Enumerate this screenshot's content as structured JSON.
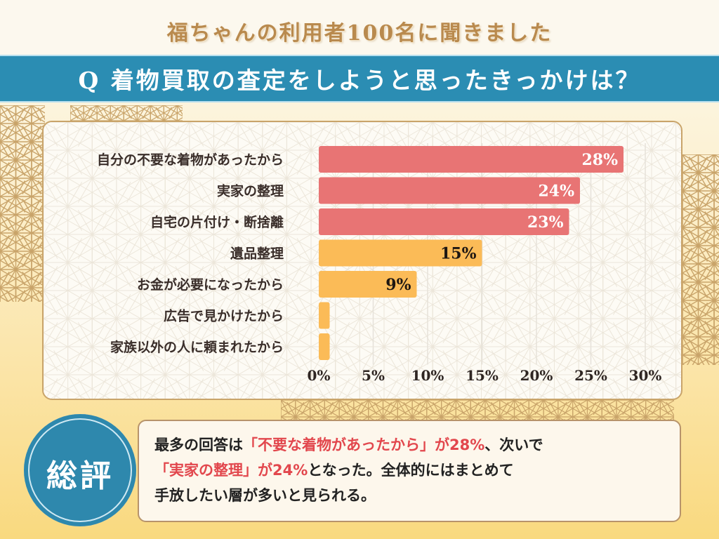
{
  "header": {
    "headline": "福ちゃんの利用者100名に聞きました",
    "question": "Q 着物買取の査定をしようと思ったきっかけは？"
  },
  "colors": {
    "primary_bar": "#e87474",
    "secondary_bar": "#fbbb57",
    "accent_blue": "#2b8db3",
    "highlight_text": "#e2474d",
    "gold": "#c9a46a"
  },
  "chart_data": {
    "type": "bar",
    "orientation": "horizontal",
    "title": "Q 着物買取の査定をしようと思ったきっかけは？",
    "categories": [
      "自分の不要な着物があったから",
      "実家の整理",
      "自宅の片付け・断捨離",
      "遺品整理",
      "お金が必要になったから",
      "広告で見かけたから",
      "家族以外の人に頼まれたから"
    ],
    "values": [
      28,
      24,
      23,
      15,
      9,
      1,
      1
    ],
    "data_labels": [
      "28%",
      "24%",
      "23%",
      "15%",
      "9%",
      "",
      ""
    ],
    "bar_groups": [
      "primary",
      "primary",
      "primary",
      "secondary",
      "secondary",
      "secondary",
      "secondary"
    ],
    "xlim": [
      0,
      30
    ],
    "xticks": [
      0,
      5,
      10,
      15,
      20,
      25,
      30
    ],
    "xtick_labels": [
      "0%",
      "5%",
      "10%",
      "15%",
      "20%",
      "25%",
      "30%"
    ],
    "xlabel": "",
    "ylabel": "",
    "grid": true,
    "legend": "none"
  },
  "summary": {
    "badge": "総評",
    "line1_a": "最多の回答は",
    "line1_hl": "「不要な着物があったから」が28%",
    "line1_b": "、次いで",
    "line2_hl": "「実家の整理」が24%",
    "line2_b": "となった。全体的にはまとめて",
    "line3": "手放したい層が多いと見られる。"
  }
}
